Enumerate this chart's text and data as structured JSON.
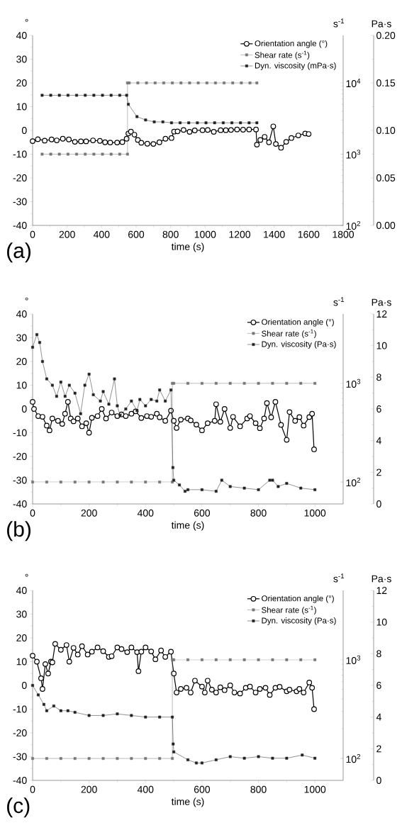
{
  "chart_data": [
    {
      "type": "line",
      "xlabel": "time (s)",
      "ylabel": "°",
      "y2label": "s$^{-1}$",
      "y3label": "Pa·s",
      "annotations": [
        "(a)"
      ],
      "legend": "top right",
      "log": "y2",
      "xlim": [
        0,
        1800
      ],
      "xticks": [
        0,
        200,
        400,
        600,
        800,
        1000,
        1200,
        1400,
        1600,
        1800
      ],
      "ylim": [
        -40,
        40
      ],
      "yticks": [
        -40,
        -30,
        -20,
        -10,
        0,
        10,
        20,
        30,
        40
      ],
      "y2lim": [
        100,
        46400
      ],
      "y2ticks": [
        {
          "value": 100,
          "label": "10$^{2}$"
        },
        {
          "value": 1000,
          "label": "10$^{3}$"
        },
        {
          "value": 10000,
          "label": "10$^{4}$"
        }
      ],
      "y3lim": [
        0,
        0.2
      ],
      "y3ticks": [
        {
          "value": 0,
          "label": "0.00"
        },
        {
          "value": 0.05,
          "label": "0.05"
        },
        {
          "value": 0.1,
          "label": "0.10"
        },
        {
          "value": 0.15,
          "label": "0.15"
        },
        {
          "value": 0.2,
          "label": "0.20"
        }
      ],
      "series": [
        {
          "name": "Orientation angle (°)",
          "color": "#000000",
          "marker": "circle",
          "x": [
            0,
            30,
            70,
            110,
            140,
            175,
            210,
            245,
            280,
            310,
            350,
            390,
            420,
            450,
            490,
            520,
            545,
            555,
            570,
            590,
            610,
            630,
            665,
            700,
            735,
            770,
            805,
            820,
            840,
            875,
            910,
            940,
            985,
            1015,
            1050,
            1090,
            1120,
            1150,
            1185,
            1220,
            1255,
            1295,
            1300,
            1320,
            1345,
            1370,
            1395,
            1410,
            1440,
            1470,
            1500,
            1540,
            1580,
            1600
          ],
          "values": [
            -4.5,
            -3.7,
            -4.3,
            -3.8,
            -4.2,
            -3.5,
            -3.8,
            -4.8,
            -4.6,
            -4.6,
            -4.2,
            -4.4,
            -5.0,
            -5.1,
            -5.1,
            -4.9,
            -3.5,
            -1.3,
            -0.5,
            -1.8,
            -4,
            -5.2,
            -5.6,
            -5.7,
            -5,
            -3.5,
            -3.2,
            -0.5,
            -0.4,
            0.2,
            -0.6,
            0,
            0.1,
            0.2,
            -0.6,
            0.1,
            0.1,
            0.2,
            0.4,
            0.3,
            0.4,
            0.4,
            -6,
            -4,
            -2.7,
            -5,
            1.7,
            -5.7,
            -7.3,
            -4.8,
            -3.2,
            -2.1,
            -1.3,
            -1.5
          ]
        },
        {
          "name": "Shear rate (s$^{-1}$)",
          "color": "#777777",
          "marker": "square",
          "axis": "y2",
          "x": [
            55,
            105,
            155,
            205,
            255,
            305,
            355,
            405,
            455,
            505,
            550,
            550,
            560,
            610,
            660,
            710,
            760,
            810,
            860,
            910,
            960,
            1010,
            1060,
            1110,
            1160,
            1210,
            1260,
            1300
          ],
          "values": [
            1000,
            1000,
            1000,
            1000,
            1000,
            1000,
            1000,
            1000,
            1000,
            1000,
            1000,
            10000,
            10000,
            10000,
            10000,
            10000,
            10000,
            10000,
            10000,
            10000,
            10000,
            10000,
            10000,
            10000,
            10000,
            10000,
            10000,
            10000
          ]
        },
        {
          "name": "Dyn. viscosity (mPa·s)",
          "color": "#222222",
          "marker": "square",
          "axis": "y3",
          "x": [
            55,
            105,
            155,
            205,
            255,
            305,
            355,
            405,
            455,
            505,
            545,
            555,
            605,
            655,
            705,
            755,
            805,
            855,
            905,
            955,
            1005,
            1055,
            1105,
            1155,
            1205,
            1255,
            1300
          ],
          "values": [
            0.137,
            0.137,
            0.137,
            0.137,
            0.137,
            0.137,
            0.137,
            0.137,
            0.137,
            0.137,
            0.137,
            0.1275,
            0.1145,
            0.111,
            0.109,
            0.109,
            0.108,
            0.108,
            0.108,
            0.108,
            0.108,
            0.108,
            0.108,
            0.108,
            0.108,
            0.108,
            0.108
          ]
        }
      ]
    },
    {
      "type": "line",
      "xlabel": "time (s)",
      "ylabel": "°",
      "y2label": "s$^{-1}$",
      "y3label": "Pa·s",
      "annotations": [
        "(b)"
      ],
      "legend": "top right",
      "log": "y2",
      "xlim": [
        0,
        1100
      ],
      "xticks": [
        0,
        200,
        400,
        600,
        800,
        1000
      ],
      "ylim": [
        -40,
        40
      ],
      "yticks": [
        -40,
        -30,
        -20,
        -10,
        0,
        10,
        20,
        30,
        40
      ],
      "y2lim": [
        60,
        5040
      ],
      "y2ticks": [
        {
          "value": 100,
          "label": "10$^{2}$"
        },
        {
          "value": 1000,
          "label": "10$^{3}$"
        }
      ],
      "y3lim": [
        0,
        12
      ],
      "y3ticks": [
        0,
        2,
        4,
        6,
        8,
        10,
        12
      ],
      "series": [
        {
          "name": "Orientation angle (°)",
          "color": "#000000",
          "marker": "circle",
          "x": [
            0,
            5,
            20,
            35,
            50,
            60,
            70,
            90,
            105,
            115,
            125,
            135,
            145,
            160,
            175,
            190,
            200,
            210,
            230,
            245,
            260,
            280,
            300,
            315,
            330,
            350,
            365,
            385,
            405,
            420,
            440,
            450,
            470,
            490,
            500,
            510,
            525,
            550,
            560,
            580,
            600,
            620,
            645,
            650,
            665,
            680,
            700,
            710,
            735,
            760,
            770,
            790,
            805,
            820,
            830,
            845,
            860,
            880,
            900,
            910,
            930,
            945,
            960,
            980,
            990,
            997
          ],
          "values": [
            3,
            0,
            -3,
            -3.3,
            -7,
            -9,
            -4,
            -5,
            -6.3,
            -2,
            3,
            -4,
            -5.2,
            -4,
            -7.3,
            -6,
            -10,
            -3.7,
            -3,
            0,
            -4,
            -1.5,
            -3,
            -2.3,
            -3,
            -2,
            -1,
            -3.8,
            -3,
            -3.3,
            -2,
            -3.5,
            -5,
            -0.7,
            -5,
            -8,
            -4.5,
            -4,
            -4.8,
            -6.6,
            -9,
            -6,
            -5,
            2,
            -5.4,
            0,
            -8,
            -3.3,
            -7.3,
            -4,
            -3,
            -6,
            -8.1,
            -4,
            2.5,
            -3.5,
            3,
            -6.7,
            -13,
            -1.3,
            -5,
            -3.4,
            -7,
            -3.4,
            -2,
            -17
          ]
        },
        {
          "name": "Shear rate (s$^{-1}$)",
          "color": "#777777",
          "marker": "square",
          "axis": "y2",
          "x": [
            0,
            50,
            100,
            150,
            200,
            250,
            300,
            350,
            400,
            450,
            495,
            495,
            500,
            550,
            600,
            650,
            700,
            750,
            800,
            850,
            900,
            950,
            1000
          ],
          "values": [
            100,
            100,
            100,
            100,
            100,
            100,
            100,
            100,
            100,
            100,
            100,
            1000,
            1000,
            1000,
            1000,
            1000,
            1000,
            1000,
            1000,
            1000,
            1000,
            1000,
            1000
          ]
        },
        {
          "name": "Dyn. viscosity (Pa·s)",
          "color": "#222222",
          "marker": "square",
          "axis": "y3",
          "x": [
            0,
            15,
            25,
            35,
            50,
            70,
            85,
            100,
            115,
            130,
            150,
            170,
            185,
            200,
            215,
            240,
            250,
            270,
            290,
            300,
            310,
            330,
            350,
            370,
            380,
            400,
            420,
            440,
            450,
            470,
            490,
            497,
            500,
            520,
            540,
            550,
            600,
            650,
            670,
            700,
            750,
            800,
            840,
            850,
            870,
            900,
            950,
            1000
          ],
          "values": [
            9.9,
            10.7,
            10.2,
            9.0,
            7.9,
            7.5,
            6.8,
            7.7,
            6.8,
            7.5,
            7.0,
            5.7,
            7.5,
            8.2,
            6.9,
            6.5,
            7.1,
            6.3,
            7.9,
            6.2,
            5.6,
            6.0,
            6.5,
            5.9,
            6.6,
            6.2,
            6.6,
            6.5,
            7.2,
            6.5,
            7.2,
            2.3,
            1.5,
            1.2,
            0.8,
            0.9,
            0.9,
            0.8,
            1.5,
            1.1,
            1.0,
            0.9,
            1.5,
            1.5,
            1.1,
            1.3,
            1.0,
            0.9
          ]
        }
      ]
    },
    {
      "type": "line",
      "xlabel": "time (s)",
      "ylabel": "°",
      "y2label": "s$^{-1}$",
      "y3label": "Pa·s",
      "annotations": [
        "(c)"
      ],
      "legend": "top right",
      "log": "y2",
      "xlim": [
        0,
        1100
      ],
      "xticks": [
        0,
        200,
        400,
        600,
        800,
        1000
      ],
      "ylim": [
        -40,
        40
      ],
      "yticks": [
        -40,
        -30,
        -20,
        -10,
        0,
        10,
        20,
        30,
        40
      ],
      "y2lim": [
        60,
        5040
      ],
      "y2ticks": [
        {
          "value": 100,
          "label": "10$^{2}$"
        },
        {
          "value": 1000,
          "label": "10$^{3}$"
        }
      ],
      "y3lim": [
        0,
        12
      ],
      "y3ticks": [
        0,
        2,
        4,
        6,
        8,
        10,
        12
      ],
      "series": [
        {
          "name": "Orientation angle (°)",
          "color": "#000000",
          "marker": "circle",
          "x": [
            0,
            15,
            30,
            35,
            45,
            55,
            65,
            70,
            80,
            100,
            120,
            130,
            145,
            160,
            175,
            195,
            210,
            230,
            250,
            270,
            280,
            300,
            315,
            335,
            350,
            370,
            375,
            385,
            400,
            420,
            435,
            455,
            470,
            490,
            500,
            510,
            525,
            545,
            560,
            575,
            600,
            610,
            620,
            635,
            650,
            665,
            680,
            700,
            715,
            735,
            755,
            770,
            790,
            805,
            825,
            840,
            860,
            875,
            900,
            910,
            935,
            945,
            960,
            980,
            990,
            997
          ],
          "values": [
            12.5,
            10,
            3,
            -1.5,
            9,
            5,
            10,
            9.7,
            17.5,
            15,
            17,
            10,
            15.8,
            13,
            16.5,
            13,
            14.2,
            16,
            14.4,
            12,
            12.3,
            16,
            15.3,
            14,
            16,
            14,
            6,
            14.2,
            16,
            14.3,
            11,
            14.7,
            12,
            14.2,
            5,
            -3,
            -1.5,
            -1,
            -3,
            2,
            -0.5,
            -3,
            2,
            -1.8,
            -3,
            -0.8,
            -2,
            0,
            -3,
            -3.4,
            -1,
            -0.5,
            -3,
            -1.5,
            -1,
            -4,
            -1,
            -0.6,
            -2.5,
            -1.8,
            -2.5,
            -1.5,
            -3,
            1.2,
            -1,
            -10
          ]
        },
        {
          "name": "Shear rate (s$^{-1}$)",
          "color": "#777777",
          "marker": "square",
          "axis": "y2",
          "x": [
            0,
            50,
            100,
            150,
            200,
            250,
            300,
            350,
            400,
            450,
            495,
            495,
            500,
            550,
            600,
            650,
            700,
            750,
            800,
            850,
            900,
            950,
            1000
          ],
          "values": [
            100,
            100,
            100,
            100,
            100,
            100,
            100,
            100,
            100,
            100,
            100,
            1000,
            1000,
            1000,
            1000,
            1000,
            1000,
            1000,
            1000,
            1000,
            1000,
            1000,
            1000
          ]
        },
        {
          "name": "Dyn. viscosity (Pa·s)",
          "color": "#222222",
          "marker": "square",
          "axis": "y3",
          "x": [
            0,
            20,
            40,
            50,
            75,
            100,
            125,
            150,
            200,
            250,
            300,
            350,
            400,
            450,
            495,
            498,
            500,
            550,
            580,
            600,
            650,
            700,
            750,
            800,
            850,
            900,
            955,
            1000
          ],
          "values": [
            6.0,
            5.4,
            4.8,
            4.4,
            4.7,
            4.4,
            4.4,
            4.3,
            4.1,
            4.1,
            4.2,
            4.1,
            4.0,
            4.0,
            4.0,
            2.3,
            1.8,
            1.3,
            1.1,
            1.1,
            1.3,
            1.5,
            1.4,
            1.5,
            1.4,
            1.4,
            1.6,
            1.4
          ]
        }
      ]
    }
  ]
}
